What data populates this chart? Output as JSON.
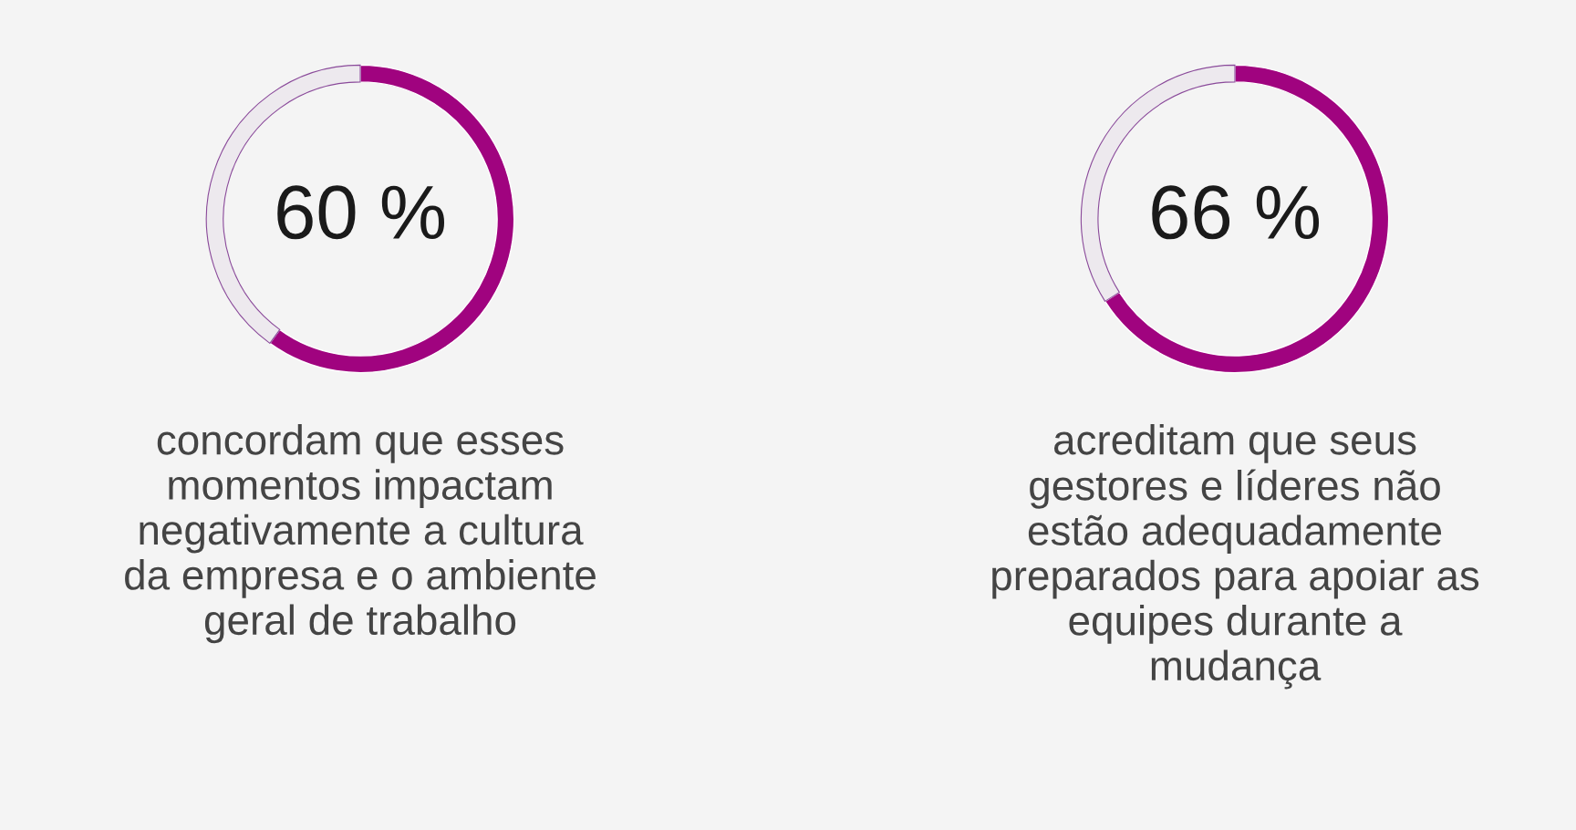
{
  "chart_data": [
    {
      "type": "donut",
      "categories": [
        null,
        null
      ],
      "values": [
        60,
        40
      ],
      "colors": [
        "#a0037f",
        "#8a4a9a"
      ],
      "value_labels": [
        "60 %",
        null
      ],
      "annotations": [
        "concordam que esses\nmomentos impactam\nnegativamente a cultura\nda empresa e o ambiente\ngeral de trabalho"
      ]
    },
    {
      "type": "donut",
      "categories": [
        null,
        null
      ],
      "values": [
        66,
        34
      ],
      "colors": [
        "#a0037f",
        "#8a4a9a"
      ],
      "value_labels": [
        "66 %",
        null
      ],
      "annotations": [
        "acreditam que seus\ngestores e líderes não\nestão adequadamente\npreparados para apoiar as\nequipes durante a\nmudança"
      ]
    }
  ]
}
